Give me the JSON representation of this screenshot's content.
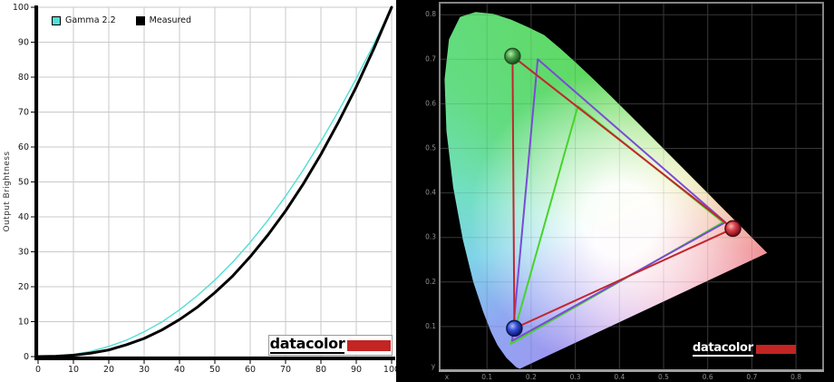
{
  "logo": {
    "text": "datacolor",
    "bar_color": "#c32424"
  },
  "chart_data": [
    {
      "id": "gamma-curve-chart",
      "type": "line",
      "title": "",
      "xlabel": "",
      "ylabel": "Output Brightness",
      "xlim": [
        0,
        100
      ],
      "ylim": [
        0,
        100
      ],
      "grid": true,
      "legend_position": "top-left",
      "xticks": [
        0,
        10,
        20,
        30,
        40,
        50,
        60,
        70,
        80,
        90,
        100
      ],
      "yticks": [
        0,
        10,
        20,
        30,
        40,
        50,
        60,
        70,
        80,
        90,
        100
      ],
      "x": [
        0,
        5,
        10,
        15,
        20,
        25,
        30,
        35,
        40,
        45,
        50,
        55,
        60,
        65,
        70,
        75,
        80,
        85,
        90,
        95,
        100
      ],
      "series": [
        {
          "name": "Gamma 2.2",
          "color": "#52ded6",
          "width": 1.4,
          "values": [
            0,
            0.1,
            0.6,
            1.5,
            2.9,
            4.7,
            7.1,
            9.9,
            13.4,
            17.4,
            21.9,
            27.0,
            32.7,
            39.0,
            45.9,
            53.4,
            61.6,
            70.3,
            79.6,
            89.5,
            100
          ]
        },
        {
          "name": "Measured",
          "color": "#000000",
          "width": 3,
          "values": [
            0,
            0.1,
            0.4,
            1.0,
            1.9,
            3.4,
            5.2,
            7.6,
            10.6,
            14.1,
            18.3,
            23.0,
            28.6,
            34.8,
            41.7,
            49.4,
            57.9,
            67.2,
            77.2,
            88.2,
            100
          ]
        }
      ]
    },
    {
      "id": "cie-chromaticity-diagram",
      "type": "area",
      "title": "",
      "x_axis_name": "x",
      "y_axis_name": "y",
      "xlim": [
        0,
        0.86
      ],
      "ylim": [
        0,
        0.83
      ],
      "grid": true,
      "xticks": [
        "0.1",
        "0.2",
        "0.3",
        "0.4",
        "0.5",
        "0.6",
        "0.7",
        "0.8"
      ],
      "yticks": [
        "0.1",
        "0.2",
        "0.3",
        "0.4",
        "0.5",
        "0.6",
        "0.7",
        "0.8"
      ],
      "gamut_triangles": [
        {
          "name": "srgb-reference",
          "color": "#46d42a",
          "points": [
            [
              0.306,
              0.595
            ],
            [
              0.635,
              0.334
            ],
            [
              0.154,
              0.061
            ]
          ]
        },
        {
          "name": "adobe-rgb-reference",
          "color": "#7a4bd4",
          "points": [
            [
              0.215,
              0.7
            ],
            [
              0.64,
              0.334
            ],
            [
              0.157,
              0.068
            ]
          ]
        },
        {
          "name": "measured-monitor-gamut",
          "color": "#c2262e",
          "points": [
            [
              0.158,
              0.707
            ],
            [
              0.657,
              0.32
            ],
            [
              0.162,
              0.096
            ]
          ]
        }
      ],
      "primary_markers": [
        {
          "name": "green-primary-marker",
          "point": [
            0.158,
            0.707
          ],
          "fill_id": "gm",
          "ring": "#234f23"
        },
        {
          "name": "red-primary-marker",
          "point": [
            0.657,
            0.32
          ],
          "fill_id": "rm",
          "ring": "#4a0d16"
        },
        {
          "name": "blue-primary-marker",
          "point": [
            0.162,
            0.096
          ],
          "fill_id": "bm",
          "ring": "#0d1742"
        }
      ],
      "spectral_locus": [
        [
          0.1741,
          0.005
        ],
        [
          0.166,
          0.009
        ],
        [
          0.1566,
          0.0177
        ],
        [
          0.144,
          0.0297
        ],
        [
          0.1241,
          0.0578
        ],
        [
          0.1096,
          0.0868
        ],
        [
          0.0913,
          0.1327
        ],
        [
          0.0687,
          0.2007
        ],
        [
          0.0454,
          0.295
        ],
        [
          0.0235,
          0.4127
        ],
        [
          0.0082,
          0.5384
        ],
        [
          0.0039,
          0.6548
        ],
        [
          0.0139,
          0.745
        ],
        [
          0.0389,
          0.795
        ],
        [
          0.0743,
          0.806
        ],
        [
          0.1142,
          0.802
        ],
        [
          0.1547,
          0.789
        ],
        [
          0.1929,
          0.772
        ],
        [
          0.2296,
          0.7543
        ],
        [
          0.2658,
          0.7243
        ],
        [
          0.3016,
          0.6923
        ],
        [
          0.3373,
          0.6589
        ],
        [
          0.3731,
          0.6245
        ],
        [
          0.4087,
          0.5896
        ],
        [
          0.4441,
          0.5547
        ],
        [
          0.4788,
          0.5202
        ],
        [
          0.5125,
          0.4866
        ],
        [
          0.5448,
          0.4544
        ],
        [
          0.5752,
          0.4242
        ],
        [
          0.6029,
          0.3965
        ],
        [
          0.627,
          0.3725
        ],
        [
          0.6482,
          0.3514
        ],
        [
          0.6658,
          0.334
        ],
        [
          0.6915,
          0.3083
        ],
        [
          0.7079,
          0.292
        ],
        [
          0.719,
          0.2809
        ],
        [
          0.7347,
          0.2653
        ]
      ]
    }
  ]
}
